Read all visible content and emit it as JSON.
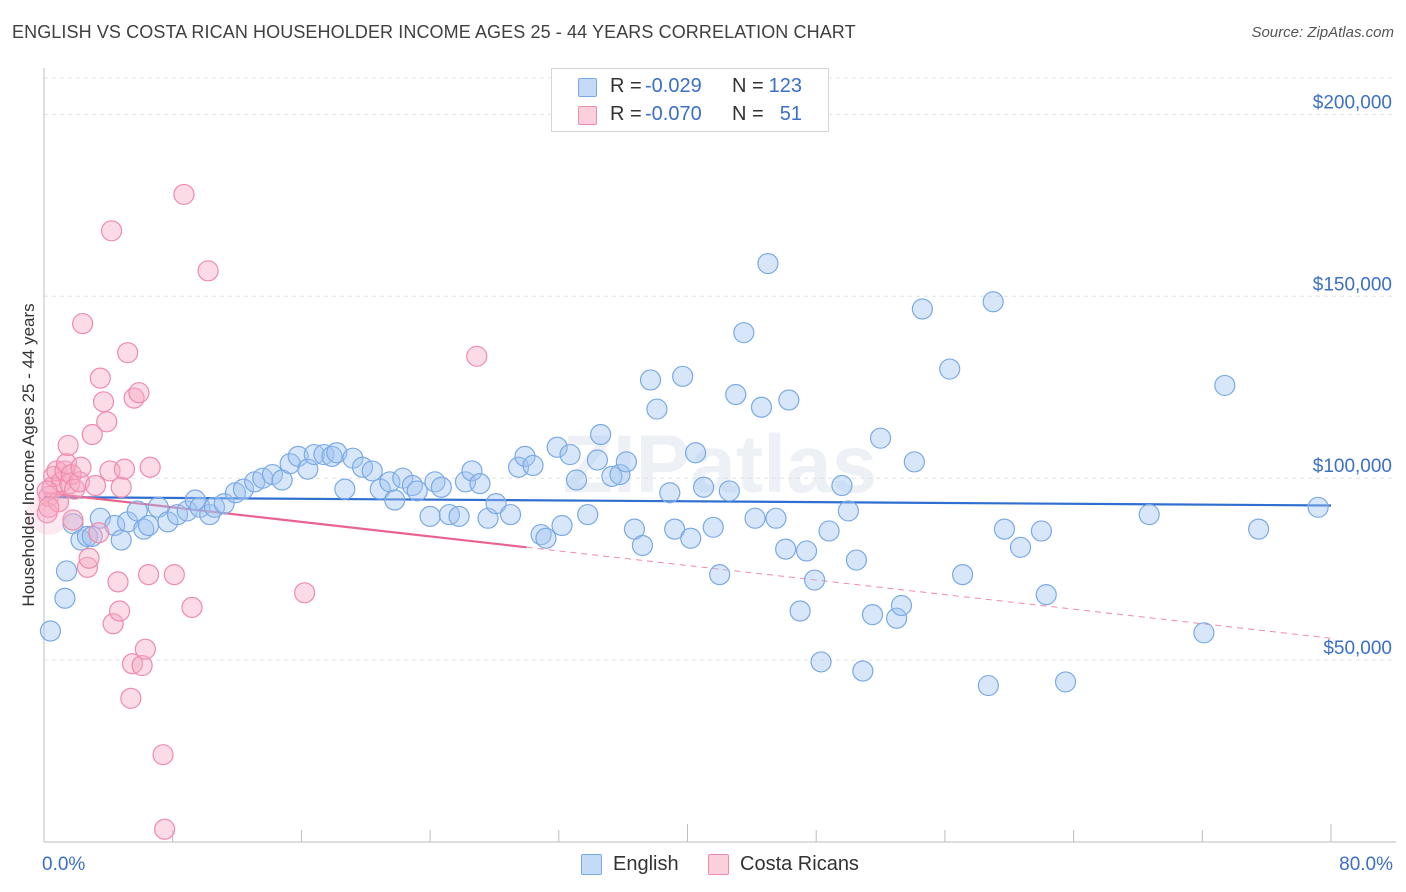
{
  "title": "ENGLISH VS COSTA RICAN HOUSEHOLDER INCOME AGES 25 - 44 YEARS CORRELATION CHART",
  "source": "Source: ZipAtlas.com",
  "watermark": "ZIPatlas",
  "legend_top": [
    {
      "r_label": "R =",
      "r_value": "-0.029",
      "n_label": "N =",
      "n_value": "123",
      "color": "#7aaae6"
    },
    {
      "r_label": "R =",
      "r_value": "-0.070",
      "n_label": "N =",
      "n_value": "51",
      "color": "#f08aaa"
    }
  ],
  "legend_bottom": [
    {
      "label": "English",
      "color": "#7aaae6"
    },
    {
      "label": "Costa Ricans",
      "color": "#f08aaa"
    }
  ],
  "chart_data": {
    "type": "scatter",
    "title": "ENGLISH VS COSTA RICAN HOUSEHOLDER INCOME AGES 25 - 44 YEARS CORRELATION CHART",
    "xlabel": "",
    "ylabel": "Householder Income Ages 25 - 44 years",
    "x_unit": "%",
    "xlim": [
      0,
      80
    ],
    "ylim": [
      0,
      210000
    ],
    "x_tick_labels": [
      "0.0%",
      "80.0%"
    ],
    "y_ticks": [
      50000,
      100000,
      150000,
      200000
    ],
    "y_tick_labels": [
      "$50,000",
      "$100,000",
      "$150,000",
      "$200,000"
    ],
    "grid": "horizontal dashed",
    "legend": "top-center",
    "series": [
      {
        "name": "English",
        "color": "#7aaae6",
        "trend": {
          "x": [
            0,
            80
          ],
          "y": [
            94800,
            92500
          ],
          "style": "solid"
        },
        "points": [
          [
            0.4,
            58000
          ],
          [
            1.3,
            67000
          ],
          [
            1.4,
            74500
          ],
          [
            1.8,
            87500
          ],
          [
            2.3,
            83000
          ],
          [
            2.7,
            84000
          ],
          [
            3.0,
            84000
          ],
          [
            3.5,
            89000
          ],
          [
            4.4,
            87000
          ],
          [
            4.8,
            83000
          ],
          [
            5.2,
            88000
          ],
          [
            5.8,
            91000
          ],
          [
            6.2,
            86000
          ],
          [
            6.5,
            87000
          ],
          [
            7.1,
            92000
          ],
          [
            7.7,
            88000
          ],
          [
            8.3,
            90000
          ],
          [
            8.9,
            91000
          ],
          [
            9.4,
            94000
          ],
          [
            9.7,
            92000
          ],
          [
            10.3,
            90000
          ],
          [
            10.6,
            92000
          ],
          [
            11.2,
            93000
          ],
          [
            11.9,
            96000
          ],
          [
            12.4,
            97000
          ],
          [
            13.1,
            99000
          ],
          [
            13.6,
            100000
          ],
          [
            14.2,
            101000
          ],
          [
            14.8,
            99500
          ],
          [
            15.3,
            104000
          ],
          [
            15.8,
            106000
          ],
          [
            16.4,
            102500
          ],
          [
            16.8,
            106500
          ],
          [
            17.4,
            106500
          ],
          [
            17.9,
            106000
          ],
          [
            18.2,
            107000
          ],
          [
            18.7,
            97000
          ],
          [
            19.2,
            105500
          ],
          [
            19.8,
            103000
          ],
          [
            20.4,
            102000
          ],
          [
            20.9,
            97000
          ],
          [
            21.5,
            99000
          ],
          [
            21.8,
            94000
          ],
          [
            22.3,
            100000
          ],
          [
            22.9,
            98000
          ],
          [
            23.2,
            96500
          ],
          [
            24.0,
            89500
          ],
          [
            24.3,
            99000
          ],
          [
            24.7,
            97500
          ],
          [
            25.2,
            90000
          ],
          [
            25.8,
            89500
          ],
          [
            26.2,
            99000
          ],
          [
            26.6,
            102000
          ],
          [
            27.1,
            98500
          ],
          [
            27.6,
            89000
          ],
          [
            28.1,
            93000
          ],
          [
            29.0,
            90000
          ],
          [
            29.5,
            103000
          ],
          [
            29.9,
            106000
          ],
          [
            30.4,
            103500
          ],
          [
            30.9,
            84500
          ],
          [
            31.2,
            83500
          ],
          [
            31.9,
            108500
          ],
          [
            32.2,
            87000
          ],
          [
            32.7,
            106500
          ],
          [
            33.1,
            99500
          ],
          [
            33.8,
            90000
          ],
          [
            34.4,
            105000
          ],
          [
            34.6,
            112000
          ],
          [
            35.3,
            100500
          ],
          [
            35.8,
            101000
          ],
          [
            36.2,
            104500
          ],
          [
            36.7,
            86000
          ],
          [
            37.2,
            81500
          ],
          [
            37.7,
            127000
          ],
          [
            38.1,
            119000
          ],
          [
            38.9,
            96000
          ],
          [
            39.2,
            86000
          ],
          [
            39.7,
            128000
          ],
          [
            40.2,
            83500
          ],
          [
            40.5,
            107000
          ],
          [
            41.0,
            97500
          ],
          [
            41.6,
            86500
          ],
          [
            42.0,
            73500
          ],
          [
            42.6,
            96500
          ],
          [
            43.0,
            123000
          ],
          [
            43.5,
            140000
          ],
          [
            44.2,
            89000
          ],
          [
            44.6,
            119500
          ],
          [
            45.0,
            159000
          ],
          [
            45.5,
            89000
          ],
          [
            46.1,
            80500
          ],
          [
            46.3,
            121500
          ],
          [
            47.0,
            63500
          ],
          [
            47.4,
            80000
          ],
          [
            47.9,
            72000
          ],
          [
            48.3,
            49500
          ],
          [
            48.8,
            85500
          ],
          [
            49.6,
            98000
          ],
          [
            50.0,
            91000
          ],
          [
            50.5,
            77500
          ],
          [
            50.9,
            47000
          ],
          [
            51.5,
            62500
          ],
          [
            52.0,
            111000
          ],
          [
            53.0,
            61500
          ],
          [
            53.3,
            65000
          ],
          [
            54.1,
            104500
          ],
          [
            54.6,
            146500
          ],
          [
            56.3,
            130000
          ],
          [
            57.1,
            73500
          ],
          [
            58.7,
            43000
          ],
          [
            59.0,
            148500
          ],
          [
            59.7,
            86000
          ],
          [
            60.7,
            81000
          ],
          [
            62.0,
            85500
          ],
          [
            62.3,
            68000
          ],
          [
            63.5,
            44000
          ],
          [
            68.7,
            90000
          ],
          [
            72.1,
            57500
          ],
          [
            73.4,
            125500
          ],
          [
            75.5,
            86000
          ],
          [
            79.2,
            92000
          ]
        ]
      },
      {
        "name": "Costa Ricans",
        "color": "#f08aaa",
        "trend": {
          "x": [
            0,
            30
          ],
          "y": [
            96000,
            81000
          ],
          "style": "solid",
          "extended": {
            "x": [
              30,
              80
            ],
            "y": [
              81000,
              56000
            ],
            "style": "dashed"
          }
        },
        "points": [
          [
            0.2,
            90500
          ],
          [
            0.3,
            95000
          ],
          [
            0.5,
            97500
          ],
          [
            0.6,
            100500
          ],
          [
            0.8,
            102000
          ],
          [
            0.9,
            93500
          ],
          [
            1.1,
            99000
          ],
          [
            1.3,
            102000
          ],
          [
            1.4,
            104000
          ],
          [
            1.5,
            109000
          ],
          [
            1.6,
            98500
          ],
          [
            1.7,
            101000
          ],
          [
            1.8,
            88500
          ],
          [
            1.9,
            97000
          ],
          [
            2.2,
            99000
          ],
          [
            2.3,
            103000
          ],
          [
            2.4,
            142500
          ],
          [
            2.7,
            75500
          ],
          [
            2.8,
            78000
          ],
          [
            3.0,
            112000
          ],
          [
            3.2,
            98000
          ],
          [
            3.4,
            85000
          ],
          [
            3.5,
            127500
          ],
          [
            3.7,
            121000
          ],
          [
            3.9,
            115500
          ],
          [
            4.1,
            102000
          ],
          [
            4.2,
            168000
          ],
          [
            4.3,
            60000
          ],
          [
            4.6,
            71500
          ],
          [
            4.7,
            63500
          ],
          [
            4.8,
            97500
          ],
          [
            5.0,
            102500
          ],
          [
            5.2,
            134500
          ],
          [
            5.4,
            39500
          ],
          [
            5.5,
            49000
          ],
          [
            5.6,
            122000
          ],
          [
            5.9,
            123500
          ],
          [
            6.1,
            48500
          ],
          [
            6.3,
            53000
          ],
          [
            6.6,
            103000
          ],
          [
            6.5,
            73500
          ],
          [
            7.4,
            24000
          ],
          [
            7.5,
            3500
          ],
          [
            8.1,
            73500
          ],
          [
            8.7,
            178000
          ],
          [
            9.2,
            64500
          ],
          [
            10.2,
            157000
          ],
          [
            16.2,
            68500
          ],
          [
            26.9,
            133500
          ],
          [
            0.2,
            96500
          ],
          [
            0.3,
            92000
          ]
        ]
      }
    ]
  }
}
